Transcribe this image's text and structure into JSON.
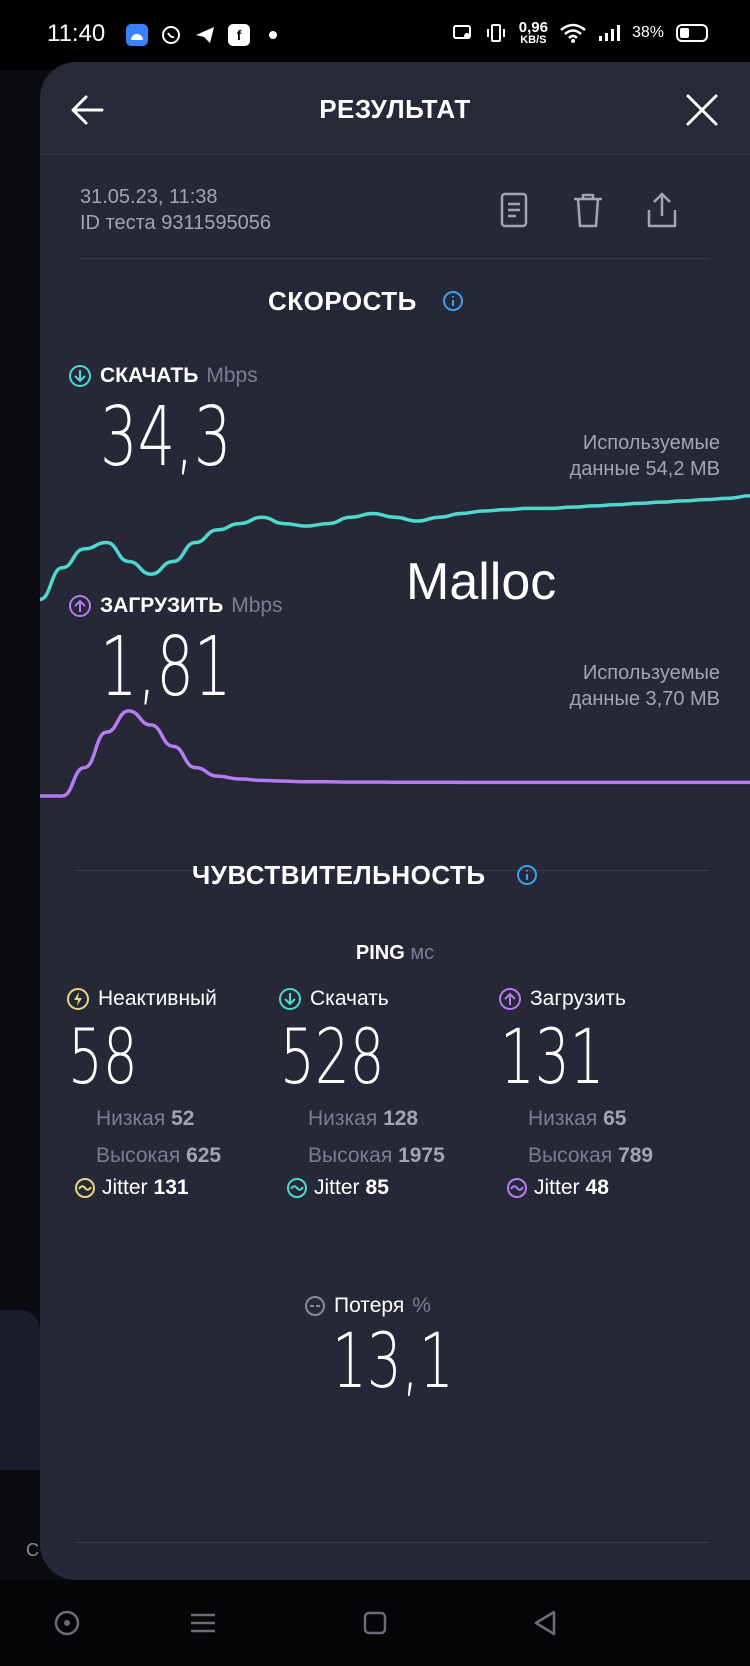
{
  "status_bar": {
    "time": "11:40",
    "net_speed_value": "0,96",
    "net_speed_unit": "KB/S",
    "battery": "38%",
    "battery_level": 0.38,
    "app_icons": [
      "android-icon",
      "viber-icon",
      "telegram-icon",
      "facebook-icon",
      "dot-icon"
    ]
  },
  "header": {
    "title": "РЕЗУЛЬТАТ",
    "back_icon": "arrow-left-icon",
    "close_icon": "close-icon"
  },
  "test_meta": {
    "date": "31.05.23, 11:38",
    "test_id": "ID теста 9311595056"
  },
  "toolbar": {
    "icons": [
      "document-icon",
      "trash-icon",
      "share-icon"
    ]
  },
  "speed": {
    "title": "СКОРОСТЬ",
    "download": {
      "label": "СКАЧАТЬ",
      "unit": "Mbps",
      "value": "34,3",
      "used_label": "Используемые",
      "used_value": "данные 54,2 MB",
      "color": "#4fd8d0"
    },
    "upload": {
      "label": "ЗАГРУЗИТЬ",
      "unit": "Mbps",
      "value": "1,81",
      "used_label": "Используемые",
      "used_value": "данные 3,70 MB",
      "color": "#b77cf2"
    }
  },
  "watermark": "Malloc",
  "responsiveness": {
    "title": "ЧУВСТВИТЕЛЬНОСТЬ",
    "ping_label": "PING",
    "ping_unit": "мс",
    "columns": [
      {
        "label": "Неактивный",
        "value": "58",
        "low_label": "Низкая",
        "low": "52",
        "high_label": "Высокая",
        "high": "625",
        "jitter_label": "Jitter",
        "jitter": "131",
        "color": "#e8d580"
      },
      {
        "label": "Скачать",
        "value": "528",
        "low_label": "Низкая",
        "low": "128",
        "high_label": "Высокая",
        "high": "1975",
        "jitter_label": "Jitter",
        "jitter": "85",
        "color": "#4fd8d0"
      },
      {
        "label": "Загрузить",
        "value": "131",
        "low_label": "Низкая",
        "low": "65",
        "high_label": "Высокая",
        "high": "789",
        "jitter_label": "Jitter",
        "jitter": "48",
        "color": "#b77cf2"
      }
    ],
    "loss_label": "Потеря",
    "loss_unit": "%",
    "loss_value": "13,1"
  },
  "chart_data": [
    {
      "type": "line",
      "series": [
        {
          "values": [
            27,
            29.5,
            31,
            31.5,
            30,
            29,
            30,
            31.5,
            32.5,
            33,
            33.5,
            33,
            32.8,
            33,
            33.5,
            33.8,
            33.5,
            33.2,
            33.5,
            33.8,
            34,
            34.1,
            34.2,
            34.2,
            34.3,
            34.4,
            34.5,
            34.6,
            34.7,
            34.8,
            34.9,
            35,
            35.2
          ]
        }
      ]
    },
    {
      "type": "line",
      "series": [
        {
          "values": [
            0,
            0,
            2,
            4.5,
            6,
            5,
            3.5,
            2,
            1.4,
            1.2,
            1.1,
            1.05,
            1.0,
            1.0,
            0.98,
            0.98,
            0.97,
            0.97,
            0.97,
            0.96,
            0.96,
            0.96,
            0.96,
            0.96,
            0.96,
            0.96,
            0.96,
            0.96,
            0.96,
            0.96,
            0.96,
            0.96,
            0.96
          ]
        }
      ]
    }
  ],
  "nav_bar": {
    "icons": [
      "recent-apps-icon",
      "menu-icon",
      "home-icon",
      "back-icon"
    ]
  }
}
